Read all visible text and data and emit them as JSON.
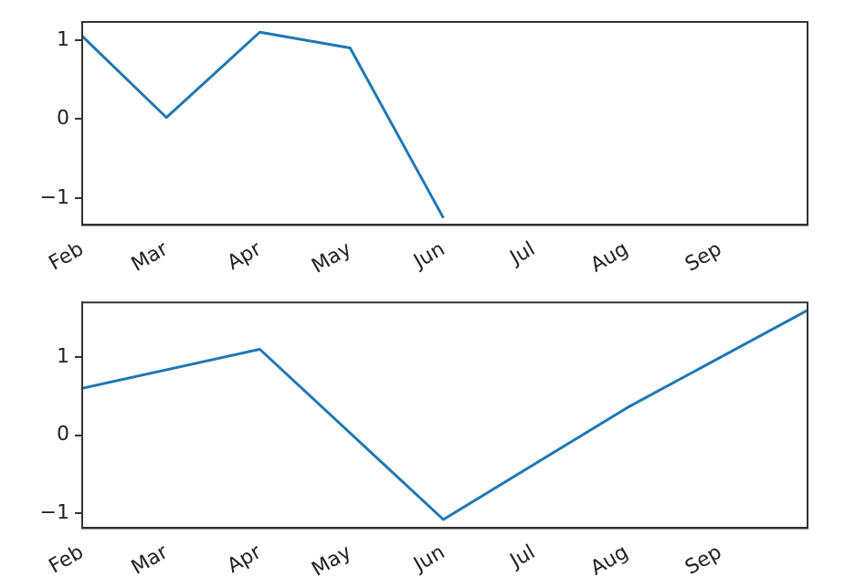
{
  "chart_data": [
    {
      "type": "line",
      "x": [
        "--02-01",
        "--03-01",
        "--04-01",
        "--05-01",
        "--06-01"
      ],
      "series": [
        {
          "color": "#1f77b4",
          "values": [
            1.05,
            0.02,
            1.1,
            0.9,
            -1.25
          ]
        }
      ],
      "xlim": [
        "--02-01",
        "--09-30"
      ],
      "xticks": [
        {
          "value": "--02-01",
          "label": "Feb"
        },
        {
          "value": "--03-01",
          "label": "Mar"
        },
        {
          "value": "--04-01",
          "label": "Apr"
        },
        {
          "value": "--05-01",
          "label": "May"
        },
        {
          "value": "--06-01",
          "label": "Jun"
        },
        {
          "value": "--07-01",
          "label": "Jul"
        },
        {
          "value": "--08-01",
          "label": "Aug"
        },
        {
          "value": "--09-01",
          "label": "Sep"
        }
      ],
      "ylim": [
        -1.34,
        1.23
      ],
      "yticks": [
        -1,
        0,
        1
      ],
      "grid": false,
      "legend": false,
      "marker": "none",
      "line_style": "solid"
    },
    {
      "type": "line",
      "x": [
        "--02-01",
        "--04-01",
        "--06-01",
        "--08-01",
        "--09-30"
      ],
      "series": [
        {
          "color": "#1f77b4",
          "values": [
            0.6,
            1.1,
            -1.08,
            0.35,
            1.6
          ]
        }
      ],
      "xlim": [
        "--02-01",
        "--09-30"
      ],
      "xticks": [
        {
          "value": "--02-01",
          "label": "Feb"
        },
        {
          "value": "--03-01",
          "label": "Mar"
        },
        {
          "value": "--04-01",
          "label": "Apr"
        },
        {
          "value": "--05-01",
          "label": "May"
        },
        {
          "value": "--06-01",
          "label": "Jun"
        },
        {
          "value": "--07-01",
          "label": "Jul"
        },
        {
          "value": "--08-01",
          "label": "Aug"
        },
        {
          "value": "--09-01",
          "label": "Sep"
        }
      ],
      "ylim": [
        -1.19,
        1.7
      ],
      "yticks": [
        -1,
        0,
        1
      ],
      "grid": false,
      "legend": false,
      "marker": "none",
      "line_style": "solid"
    }
  ]
}
